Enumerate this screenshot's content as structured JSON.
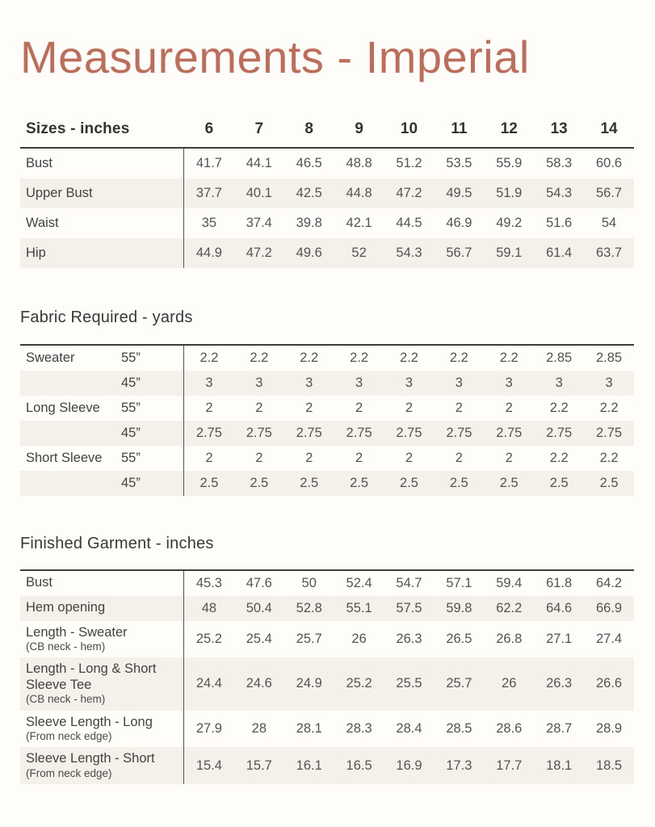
{
  "page": {
    "title": "Measurements - Imperial",
    "accent_color": "#bd6e5b",
    "stripe_color": "#f5f1ea"
  },
  "sizes_table": {
    "header_label": "Sizes - inches",
    "sizes": [
      "6",
      "7",
      "8",
      "9",
      "10",
      "11",
      "12",
      "13",
      "14"
    ],
    "rows": [
      {
        "label": "Bust",
        "values": [
          "41.7",
          "44.1",
          "46.5",
          "48.8",
          "51.2",
          "53.5",
          "55.9",
          "58.3",
          "60.6"
        ]
      },
      {
        "label": "Upper Bust",
        "values": [
          "37.7",
          "40.1",
          "42.5",
          "44.8",
          "47.2",
          "49.5",
          "51.9",
          "54.3",
          "56.7"
        ]
      },
      {
        "label": "Waist",
        "values": [
          "35",
          "37.4",
          "39.8",
          "42.1",
          "44.5",
          "46.9",
          "49.2",
          "51.6",
          "54"
        ]
      },
      {
        "label": "Hip",
        "values": [
          "44.9",
          "47.2",
          "49.6",
          "52",
          "54.3",
          "56.7",
          "59.1",
          "61.4",
          "63.7"
        ]
      }
    ]
  },
  "fabric_table": {
    "title": "Fabric Required - yards",
    "rows": [
      {
        "garment": "Sweater",
        "width": "55”",
        "values": [
          "2.2",
          "2.2",
          "2.2",
          "2.2",
          "2.2",
          "2.2",
          "2.2",
          "2.85",
          "2.85"
        ]
      },
      {
        "garment": "",
        "width": "45”",
        "values": [
          "3",
          "3",
          "3",
          "3",
          "3",
          "3",
          "3",
          "3",
          "3"
        ]
      },
      {
        "garment": "Long Sleeve",
        "width": "55”",
        "values": [
          "2",
          "2",
          "2",
          "2",
          "2",
          "2",
          "2",
          "2.2",
          "2.2"
        ]
      },
      {
        "garment": "",
        "width": "45”",
        "values": [
          "2.75",
          "2.75",
          "2.75",
          "2.75",
          "2.75",
          "2.75",
          "2.75",
          "2.75",
          "2.75"
        ]
      },
      {
        "garment": "Short Sleeve",
        "width": "55”",
        "values": [
          "2",
          "2",
          "2",
          "2",
          "2",
          "2",
          "2",
          "2.2",
          "2.2"
        ]
      },
      {
        "garment": "",
        "width": "45”",
        "values": [
          "2.5",
          "2.5",
          "2.5",
          "2.5",
          "2.5",
          "2.5",
          "2.5",
          "2.5",
          "2.5"
        ]
      }
    ]
  },
  "finished_table": {
    "title": "Finished Garment - inches",
    "rows": [
      {
        "label": "Bust",
        "sublabel": "",
        "values": [
          "45.3",
          "47.6",
          "50",
          "52.4",
          "54.7",
          "57.1",
          "59.4",
          "61.8",
          "64.2"
        ]
      },
      {
        "label": "Hem opening",
        "sublabel": "",
        "values": [
          "48",
          "50.4",
          "52.8",
          "55.1",
          "57.5",
          "59.8",
          "62.2",
          "64.6",
          "66.9"
        ]
      },
      {
        "label": "Length - Sweater",
        "sublabel": "(CB neck - hem)",
        "values": [
          "25.2",
          "25.4",
          "25.7",
          "26",
          "26.3",
          "26.5",
          "26.8",
          "27.1",
          "27.4"
        ]
      },
      {
        "label": "Length - Long & Short Sleeve Tee",
        "sublabel": "(CB neck - hem)",
        "values": [
          "24.4",
          "24.6",
          "24.9",
          "25.2",
          "25.5",
          "25.7",
          "26",
          "26.3",
          "26.6"
        ]
      },
      {
        "label": "Sleeve Length  - Long",
        "sublabel": "(From neck edge)",
        "values": [
          "27.9",
          "28",
          "28.1",
          "28.3",
          "28.4",
          "28.5",
          "28.6",
          "28.7",
          "28.9"
        ]
      },
      {
        "label": "Sleeve Length - Short",
        "sublabel": "(From neck edge)",
        "values": [
          "15.4",
          "15.7",
          "16.1",
          "16.5",
          "16.9",
          "17.3",
          "17.7",
          "18.1",
          "18.5"
        ]
      }
    ]
  }
}
